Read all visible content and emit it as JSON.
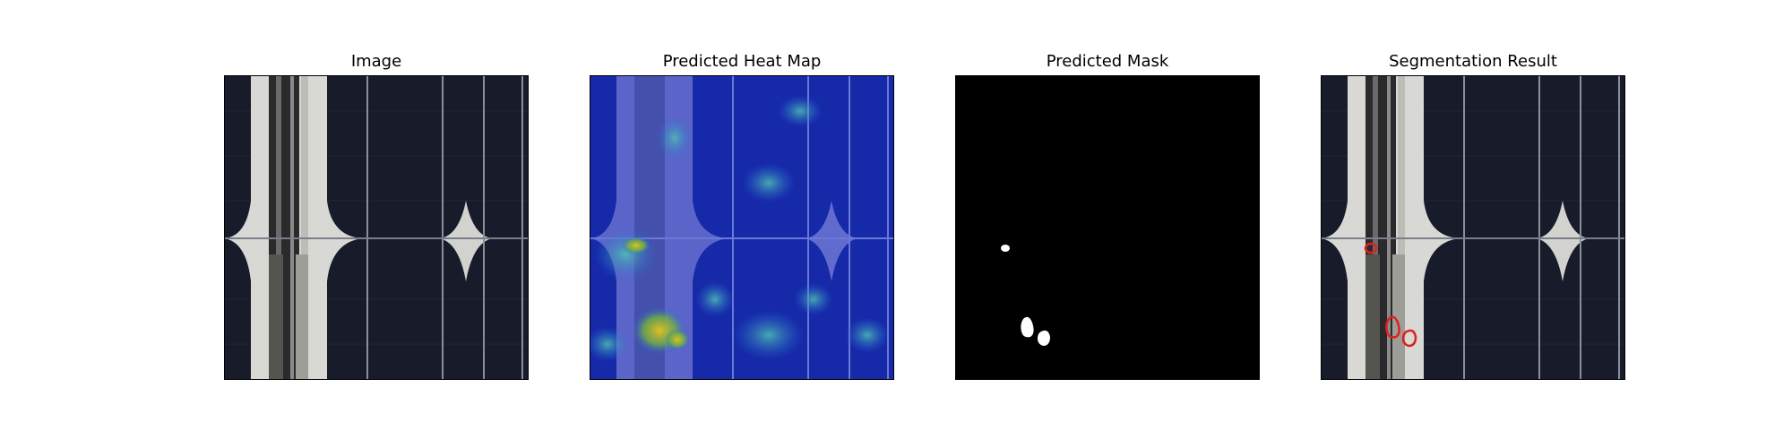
{
  "figure": {
    "panels": [
      {
        "title": "Image",
        "content": "solar-cell-photo"
      },
      {
        "title": "Predicted Heat Map",
        "content": "heatmap-overlay"
      },
      {
        "title": "Predicted Mask",
        "content": "binary-mask"
      },
      {
        "title": "Segmentation Result",
        "content": "photo-with-red-contours"
      }
    ]
  },
  "colors": {
    "cell_dark": "#181c2a",
    "busbar_light": "#d8d8d4",
    "mask_bg": "#000000",
    "mask_fg": "#ffffff",
    "contour": "#e0201c"
  }
}
